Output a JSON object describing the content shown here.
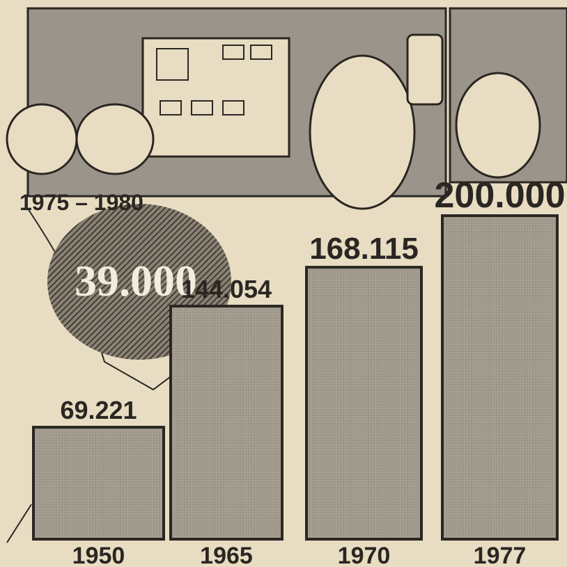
{
  "chart_data": {
    "type": "bar",
    "categories": [
      "1950",
      "1965",
      "1970",
      "1977"
    ],
    "values": [
      69221,
      144054,
      168115,
      200000
    ],
    "value_labels": [
      "69.221",
      "144.054",
      "168.115",
      "200.000"
    ],
    "color": "#a39c8e",
    "annotation": {
      "period": "1975 – 1980",
      "text": "39.000"
    }
  }
}
